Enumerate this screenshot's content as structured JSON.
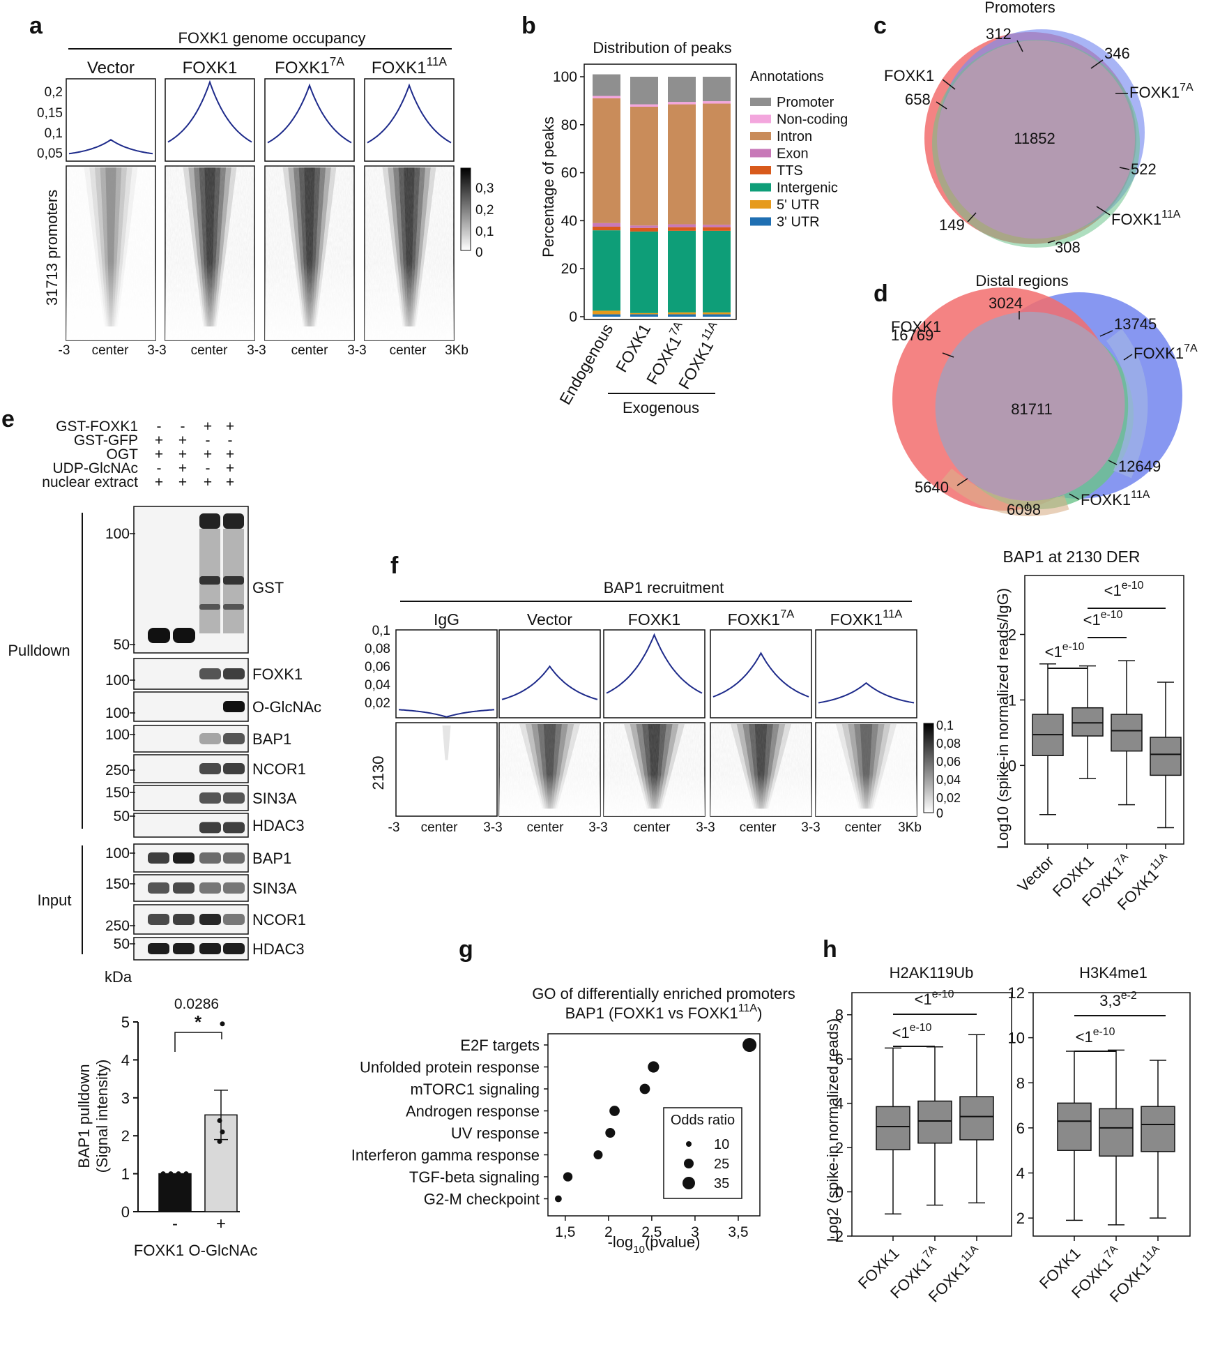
{
  "panel_labels": {
    "a": "a",
    "b": "b",
    "c": "c",
    "d": "d",
    "e": "e",
    "f": "f",
    "g": "g",
    "h": "h"
  },
  "panel_a": {
    "title": "FOXK1 genome occupancy",
    "columns": [
      "Vector",
      "FOXK1",
      "FOXK1",
      "FOXK1"
    ],
    "column_sups": [
      "",
      "",
      "7A",
      "11A"
    ],
    "yticks": [
      "0,2",
      "0,15",
      "0,1",
      "0,05"
    ],
    "heatmap_label": "31713 promoters",
    "colorbar_ticks": [
      "0,3",
      "0,2",
      "0,1",
      "0"
    ],
    "peak_heights": [
      0.065,
      0.24,
      0.23,
      0.23
    ],
    "xaxis": {
      "left": "-3",
      "mid": "center",
      "right": "3",
      "joined": "3-3",
      "last": "3Kb"
    }
  },
  "panel_b": {
    "title": "Distribution of peaks",
    "ylabel": "Percentage of peaks",
    "legend_title": "Annotations",
    "group_label": "Exogenous",
    "chart_data": {
      "type": "bar",
      "stacked": true,
      "title": "Distribution of peaks",
      "ylabel": "Percentage of peaks",
      "ylim": [
        0,
        100
      ],
      "yticks": [
        "0",
        "20",
        "40",
        "60",
        "80",
        "100"
      ],
      "categories": [
        "Endogenous",
        "FOXK1",
        "FOXK1",
        "FOXK1"
      ],
      "category_sups": [
        "",
        "",
        "7A",
        "11A"
      ],
      "series": [
        {
          "name": "3' UTR",
          "color": "#1f6fb2",
          "values": [
            1,
            1,
            1,
            1
          ]
        },
        {
          "name": "5' UTR",
          "color": "#e69a1b",
          "values": [
            1.5,
            0.5,
            0.8,
            0.8
          ]
        },
        {
          "name": "Intergenic",
          "color": "#0e9e78",
          "values": [
            33.5,
            34,
            34,
            34
          ]
        },
        {
          "name": "TTS",
          "color": "#d85a1c",
          "values": [
            1.5,
            1.5,
            1.5,
            1.5
          ]
        },
        {
          "name": "Exon",
          "color": "#c879b8",
          "values": [
            1.5,
            1,
            1.2,
            1
          ]
        },
        {
          "name": "Intron",
          "color": "#c98c5a",
          "values": [
            52,
            49.5,
            50,
            50.5
          ]
        },
        {
          "name": "Non-coding",
          "color": "#f3a6dd",
          "values": [
            1,
            1,
            1,
            1
          ]
        },
        {
          "name": "Promoter",
          "color": "#8f8f8f",
          "values": [
            9,
            11.5,
            10.5,
            10.2
          ]
        }
      ]
    }
  },
  "panel_c": {
    "title": "Promoters",
    "center_value": "11852",
    "labels": {
      "foxk1": "FOXK1",
      "foxk1_7a": "FOXK1",
      "foxk1_11a": "FOXK1",
      "sup7": "7A",
      "sup11": "11A"
    },
    "numbers": [
      "312",
      "346",
      "658",
      "522",
      "149",
      "308"
    ]
  },
  "panel_d": {
    "title": "Distal regions",
    "center_value": "81711",
    "labels": {
      "foxk1": "FOXK1",
      "foxk1_7a": "FOXK1",
      "foxk1_11a": "FOXK1",
      "sup7": "7A",
      "sup11": "11A"
    },
    "numbers": [
      "3024",
      "13745",
      "16769",
      "12649",
      "5640",
      "6098"
    ]
  },
  "panel_e": {
    "conditions": [
      {
        "label": "GST-FOXK1",
        "marks": [
          "-",
          "-",
          "+",
          "+"
        ]
      },
      {
        "label": "GST-GFP",
        "marks": [
          "+",
          "+",
          "-",
          "-"
        ]
      },
      {
        "label": "OGT",
        "marks": [
          "+",
          "+",
          "+",
          "+"
        ]
      },
      {
        "label": "UDP-GlcNAc",
        "marks": [
          "-",
          "+",
          "-",
          "+"
        ]
      },
      {
        "label": "nuclear extract",
        "marks": [
          "+",
          "+",
          "+",
          "+"
        ]
      }
    ],
    "section_pulldown": "Pulldown",
    "section_input": "Input",
    "kda": "kDa",
    "blots": [
      {
        "name": "GST",
        "markers": [
          "100",
          "50"
        ]
      },
      {
        "name": "FOXK1",
        "markers": [
          "100"
        ]
      },
      {
        "name": "O-GlcNAc",
        "markers": [
          "100"
        ]
      },
      {
        "name": "BAP1",
        "markers": [
          "100"
        ]
      },
      {
        "name": "NCOR1",
        "markers": [
          "250"
        ]
      },
      {
        "name": "SIN3A",
        "markers": [
          "150"
        ]
      },
      {
        "name": "HDAC3",
        "markers": [
          "50"
        ]
      },
      {
        "name": "BAP1",
        "markers": [
          "100"
        ]
      },
      {
        "name": "SIN3A",
        "markers": [
          "150"
        ]
      },
      {
        "name": "NCOR1",
        "markers": [
          "250"
        ]
      },
      {
        "name": "HDAC3",
        "markers": [
          "50"
        ]
      }
    ],
    "bar_chart": {
      "chart_data": {
        "type": "bar",
        "categories": [
          "-",
          "+"
        ],
        "values": [
          1,
          2.55
        ],
        "errors": [
          0,
          0.65
        ],
        "points": [
          [
            1,
            1,
            1,
            1
          ],
          [
            4.95,
            2.4,
            2.1,
            1.85
          ]
        ],
        "ylabel_line1": "BAP1 pulldown",
        "ylabel_line2": "(Signal intensity)",
        "ylim": [
          0,
          5
        ],
        "yticks": [
          "0",
          "1",
          "2",
          "3",
          "4",
          "5"
        ],
        "pvalue": "0.0286",
        "star": "*",
        "xlabel_left": "FOXK1",
        "xlabel_right": "O-GlcNAc"
      }
    }
  },
  "panel_f": {
    "title": "BAP1 recruitment",
    "columns": [
      "IgG",
      "Vector",
      "FOXK1",
      "FOXK1",
      "FOXK1"
    ],
    "column_sups": [
      "",
      "",
      "",
      "7A",
      "11A"
    ],
    "yticks": [
      "0,1",
      "0,08",
      "0,06",
      "0,04",
      "0,02"
    ],
    "heatmap_label": "2130",
    "colorbar_ticks": [
      "0,1",
      "0,08",
      "0,06",
      "0,04",
      "0,02",
      "0"
    ],
    "peak_heights": [
      0.001,
      0.062,
      0.1,
      0.078,
      0.042
    ],
    "xaxis": {
      "left": "-3",
      "mid": "center",
      "joined": "3-3",
      "last": "3Kb"
    }
  },
  "panel_f_box": {
    "chart_data": {
      "type": "box",
      "title": "BAP1 at 2130 DER",
      "ylabel": "Log10 (spike-in normalized reads/IgG)",
      "ylim": [
        -1.2,
        2.9
      ],
      "yticks": [
        "0",
        "1",
        "2"
      ],
      "categories": [
        "Vector",
        "FOXK1",
        "FOXK1",
        "FOXK1"
      ],
      "category_sups": [
        "",
        "",
        "7A",
        "11A"
      ],
      "boxes": [
        {
          "min": -0.75,
          "q1": 0.15,
          "median": 0.47,
          "q3": 0.78,
          "max": 1.55
        },
        {
          "min": -0.2,
          "q1": 0.45,
          "median": 0.65,
          "q3": 0.88,
          "max": 1.52
        },
        {
          "min": -0.6,
          "q1": 0.22,
          "median": 0.53,
          "q3": 0.78,
          "max": 1.6
        },
        {
          "min": -0.95,
          "q1": -0.15,
          "median": 0.17,
          "q3": 0.43,
          "max": 1.27
        }
      ],
      "comparisons": [
        {
          "text": "<1",
          "sup": "e-10"
        },
        {
          "text": "<1",
          "sup": "e-10"
        },
        {
          "text": "<1",
          "sup": "e-10"
        }
      ]
    }
  },
  "panel_g": {
    "chart_data": {
      "type": "scatter",
      "title_line1": "GO of differentially enriched promoters",
      "title_line2": "BAP1 (FOXK1 vs FOXK1",
      "title_sup": "11A",
      "title_end": ")",
      "xlabel": "-log",
      "xlabel_sub": "10",
      "xlabel_end": "(pvalue)",
      "xlim": [
        1.3,
        3.75
      ],
      "xticks": [
        "1,5",
        "2",
        "2,5",
        "3",
        "3,5"
      ],
      "terms": [
        "E2F targets",
        "Unfolded protein response",
        "mTORC1 signaling",
        "Androgen response",
        "UV response",
        "Interferon gamma response",
        "TGF-beta signaling",
        "G2-M checkpoint"
      ],
      "x": [
        3.63,
        2.52,
        2.42,
        2.07,
        2.02,
        1.88,
        1.53,
        1.42
      ],
      "odds_ratio": [
        38,
        22,
        17,
        17,
        15,
        12,
        13,
        5
      ],
      "legend_title": "Odds ratio",
      "legend_sizes": [
        "10",
        "25",
        "35"
      ]
    }
  },
  "panel_h": {
    "ylabel": "Log2 (spike-in normalized reads)",
    "left": {
      "chart_data": {
        "type": "box",
        "title": "H2AK119Ub",
        "ylim": [
          -2,
          9
        ],
        "yticks": [
          "-2",
          "0",
          "2",
          "4",
          "6",
          "8"
        ],
        "categories": [
          "FOXK1",
          "FOXK1",
          "FOXK1"
        ],
        "category_sups": [
          "",
          "7A",
          "11A"
        ],
        "boxes": [
          {
            "min": -1.0,
            "q1": 1.9,
            "median": 2.95,
            "q3": 3.85,
            "max": 6.5
          },
          {
            "min": -0.6,
            "q1": 2.2,
            "median": 3.2,
            "q3": 4.1,
            "max": 6.55
          },
          {
            "min": -0.5,
            "q1": 2.35,
            "median": 3.4,
            "q3": 4.3,
            "max": 7.1
          }
        ],
        "comparisons": [
          {
            "text": "<1",
            "sup": "e-10"
          },
          {
            "text": "<1",
            "sup": "e-10"
          }
        ]
      }
    },
    "right": {
      "chart_data": {
        "type": "box",
        "title": "H3K4me1",
        "ylim": [
          1.2,
          12
        ],
        "yticks": [
          "2",
          "4",
          "6",
          "8",
          "10",
          "12"
        ],
        "categories": [
          "FOXK1",
          "FOXK1",
          "FOXK1"
        ],
        "category_sups": [
          "",
          "7A",
          "11A"
        ],
        "boxes": [
          {
            "min": 1.9,
            "q1": 5.0,
            "median": 6.3,
            "q3": 7.1,
            "max": 9.4
          },
          {
            "min": 1.7,
            "q1": 4.75,
            "median": 6.0,
            "q3": 6.85,
            "max": 9.45
          },
          {
            "min": 2.0,
            "q1": 4.95,
            "median": 6.15,
            "q3": 6.95,
            "max": 9.0
          }
        ],
        "comparisons": [
          {
            "text": "<1",
            "sup": "e-10"
          },
          {
            "text": "3,3",
            "sup": "e-2"
          }
        ]
      }
    }
  }
}
